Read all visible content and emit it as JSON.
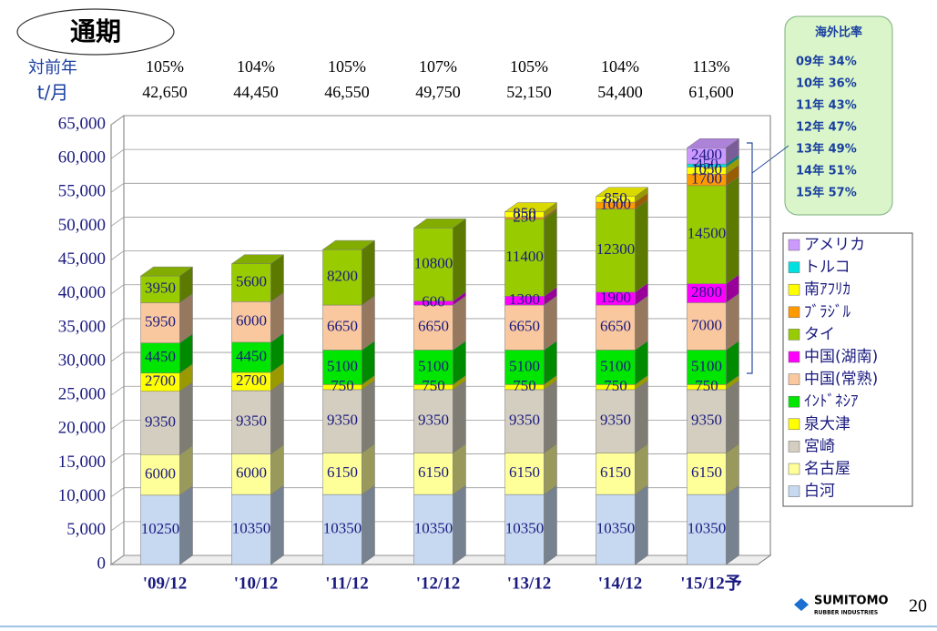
{
  "chart_data": {
    "type": "stacked_bar_3d",
    "title": "通期",
    "categories": [
      "'09/12",
      "'10/12",
      "'11/12",
      "'12/12",
      "'13/12",
      "'14/12",
      "'15/12予"
    ],
    "yoy_row": {
      "label": "対前年",
      "values": [
        "105%",
        "104%",
        "105%",
        "107%",
        "105%",
        "104%",
        "113%"
      ]
    },
    "total_row": {
      "label": "t/月",
      "values": [
        "42,650",
        "44,450",
        "46,550",
        "49,750",
        "52,150",
        "54,400",
        "61,600"
      ]
    },
    "series": [
      {
        "name": "白河",
        "color": "#c6d9f0",
        "values": [
          10250,
          10350,
          10350,
          10350,
          10350,
          10350,
          10350
        ]
      },
      {
        "name": "名古屋",
        "color": "#ffff99",
        "values": [
          6000,
          6000,
          6150,
          6150,
          6150,
          6150,
          6150
        ]
      },
      {
        "name": "宮崎",
        "color": "#d4cec0",
        "values": [
          9350,
          9350,
          9350,
          9350,
          9350,
          9350,
          9350
        ]
      },
      {
        "name": "泉大津",
        "color": "#ffff00",
        "values": [
          2700,
          2700,
          750,
          750,
          750,
          750,
          750
        ]
      },
      {
        "name": "ｲﾝﾄﾞﾈｼｱ",
        "color": "#00e600",
        "values": [
          4450,
          4450,
          5100,
          5100,
          5100,
          5100,
          5100
        ]
      },
      {
        "name": "中国(常熟)",
        "color": "#fac89e",
        "values": [
          5950,
          6000,
          6650,
          6650,
          6650,
          6650,
          7000
        ]
      },
      {
        "name": "中国(湖南)",
        "color": "#ff00ff",
        "values": [
          null,
          null,
          null,
          600,
          1300,
          1900,
          2800
        ]
      },
      {
        "name": "タイ",
        "color": "#99cc00",
        "values": [
          3950,
          5600,
          8200,
          10800,
          11400,
          12300,
          14500
        ]
      },
      {
        "name": "ﾌﾞﾗｼﾞﾙ",
        "color": "#ff9900",
        "values": [
          null,
          null,
          null,
          null,
          250,
          1000,
          1700
        ]
      },
      {
        "name": "南ｱﾌﾘｶ",
        "color": "#ffff00",
        "values": [
          null,
          null,
          null,
          null,
          850,
          850,
          1050
        ]
      },
      {
        "name": "トルコ",
        "color": "#00e0e0",
        "values": [
          null,
          null,
          null,
          null,
          null,
          null,
          450
        ]
      },
      {
        "name": "アメリカ",
        "color": "#cc99ff",
        "values": [
          null,
          null,
          null,
          null,
          null,
          null,
          2400
        ]
      }
    ],
    "ylim": [
      0,
      65000
    ],
    "yticks": [
      {
        "value": 0,
        "label": "0"
      },
      {
        "value": 5000,
        "label": "5,000"
      },
      {
        "value": 10000,
        "label": "10,000"
      },
      {
        "value": 15000,
        "label": "15,000"
      },
      {
        "value": 20000,
        "label": "20,000"
      },
      {
        "value": 25000,
        "label": "25,000"
      },
      {
        "value": 30000,
        "label": "30,000"
      },
      {
        "value": 35000,
        "label": "35,000"
      },
      {
        "value": 40000,
        "label": "40,000"
      },
      {
        "value": 45000,
        "label": "45,000"
      },
      {
        "value": 50000,
        "label": "50,000"
      },
      {
        "value": 55000,
        "label": "55,000"
      },
      {
        "value": 60000,
        "label": "60,000"
      },
      {
        "value": 65000,
        "label": "65,000"
      }
    ],
    "grid": true,
    "legend": "right",
    "overseas_box": {
      "title": "海外比率",
      "lines": [
        "09年 34%",
        "10年 36%",
        "11年 43%",
        "12年 47%",
        "13年 49%",
        "14年 51%",
        "15年 57%"
      ]
    },
    "logo": {
      "name": "SUMITOMO",
      "sub": "RUBBER INDUSTRIES"
    },
    "page_number": "20"
  }
}
